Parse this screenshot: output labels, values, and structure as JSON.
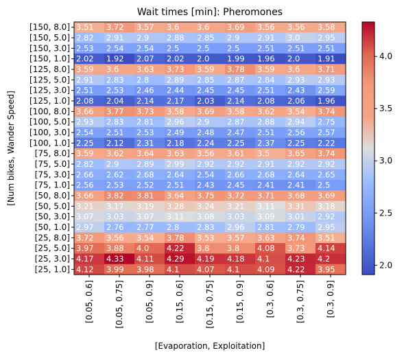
{
  "chart_data": {
    "type": "heatmap",
    "title": "Wait times [min]: Pheromones",
    "xlabel": "[Evaporation, Exploitation]",
    "ylabel": "[Num bikes, Wander Speed]",
    "x_categories": [
      "[0.05, 0.6]",
      "[0.05, 0.75]",
      "[0.05, 0.9]",
      "[0.15, 0.6]",
      "[0.15, 0.75]",
      "[0.15, 0.9]",
      "[0.3, 0.6]",
      "[0.3, 0.75]",
      "[0.3, 0.9]"
    ],
    "y_categories": [
      "[150, 8.0]",
      "[150, 5.0]",
      "[150, 3.0]",
      "[150, 1.0]",
      "[125, 8.0]",
      "[125, 5.0]",
      "[125, 3.0]",
      "[125, 1.0]",
      "[100, 8.0]",
      "[100, 5.0]",
      "[100, 3.0]",
      "[100, 1.0]",
      "[75, 8.0]",
      "[75, 5.0]",
      "[75, 3.0]",
      "[75, 1.0]",
      "[50, 8.0]",
      "[50, 5.0]",
      "[50, 3.0]",
      "[50, 1.0]",
      "[25, 8.0]",
      "[25, 5.0]",
      "[25, 3.0]",
      "[25, 1.0]"
    ],
    "values": [
      [
        "3.51",
        "3.72",
        "3.57",
        "3.6",
        "3.6",
        "3.69",
        "3.56",
        "3.56",
        "3.58"
      ],
      [
        "2.82",
        "2.91",
        "2.9",
        "2.88",
        "2.85",
        "2.9",
        "2.91",
        "3.0",
        "2.95"
      ],
      [
        "2.53",
        "2.54",
        "2.54",
        "2.5",
        "2.5",
        "2.5",
        "2.51",
        "2.51",
        "2.51"
      ],
      [
        "2.02",
        "1.92",
        "2.07",
        "2.02",
        "2.0",
        "1.99",
        "1.96",
        "2.0",
        "1.91"
      ],
      [
        "3.59",
        "3.6",
        "3.63",
        "3.73",
        "3.59",
        "3.78",
        "3.59",
        "3.6",
        "3.71"
      ],
      [
        "2.91",
        "2.83",
        "2.8",
        "2.89",
        "2.85",
        "2.87",
        "2.84",
        "2.93",
        "2.93"
      ],
      [
        "2.51",
        "2.53",
        "2.46",
        "2.44",
        "2.45",
        "2.45",
        "2.51",
        "2.43",
        "2.59"
      ],
      [
        "2.08",
        "2.04",
        "2.14",
        "2.17",
        "2.03",
        "2.14",
        "2.08",
        "2.06",
        "1.96"
      ],
      [
        "3.66",
        "3.77",
        "3.73",
        "3.58",
        "3.69",
        "3.58",
        "3.62",
        "3.54",
        "3.74"
      ],
      [
        "2.93",
        "2.83",
        "2.81",
        "2.96",
        "2.9",
        "2.87",
        "2.88",
        "2.94",
        "2.75"
      ],
      [
        "2.54",
        "2.51",
        "2.53",
        "2.49",
        "2.48",
        "2.47",
        "2.51",
        "2.56",
        "2.57"
      ],
      [
        "2.25",
        "2.12",
        "2.31",
        "2.18",
        "2.24",
        "2.25",
        "2.37",
        "2.25",
        "2.22"
      ],
      [
        "3.59",
        "3.62",
        "3.64",
        "3.63",
        "3.56",
        "3.61",
        "3.5",
        "3.65",
        "3.74"
      ],
      [
        "2.82",
        "2.9",
        "2.89",
        "2.99",
        "2.92",
        "2.92",
        "2.91",
        "2.92",
        "2.92"
      ],
      [
        "2.66",
        "2.62",
        "2.68",
        "2.64",
        "2.54",
        "2.66",
        "2.68",
        "2.64",
        "2.65"
      ],
      [
        "2.56",
        "2.53",
        "2.52",
        "2.51",
        "2.43",
        "2.45",
        "2.41",
        "2.41",
        "2.5"
      ],
      [
        "3.66",
        "3.82",
        "3.81",
        "3.64",
        "3.75",
        "3.72",
        "3.71",
        "3.68",
        "3.69"
      ],
      [
        "3.21",
        "3.17",
        "3.19",
        "3.28",
        "3.24",
        "3.21",
        "3.11",
        "3.31",
        "3.18"
      ],
      [
        "3.07",
        "3.03",
        "3.07",
        "3.11",
        "3.08",
        "3.03",
        "3.09",
        "3.01",
        "2.92"
      ],
      [
        "2.97",
        "2.76",
        "2.77",
        "2.8",
        "2.83",
        "2.96",
        "2.81",
        "2.79",
        "2.95"
      ],
      [
        "3.72",
        "3.56",
        "3.54",
        "3.78",
        "3.53",
        "3.57",
        "3.63",
        "3.74",
        "3.51"
      ],
      [
        "3.97",
        "3.88",
        "4.0",
        "4.22",
        "3.8",
        "3.8",
        "4.08",
        "3.73",
        "4.14"
      ],
      [
        "4.17",
        "4.33",
        "4.11",
        "4.29",
        "4.19",
        "4.18",
        "4.1",
        "4.23",
        "4.2"
      ],
      [
        "4.12",
        "3.99",
        "3.98",
        "4.1",
        "4.07",
        "4.1",
        "4.09",
        "4.22",
        "3.95"
      ]
    ],
    "colormap": "coolwarm",
    "color_range": [
      1.91,
      4.33
    ],
    "colorbar_ticks": [
      "2.0",
      "2.5",
      "3.0",
      "3.5",
      "4.0"
    ],
    "colors": {
      "low": "#3b4cc0",
      "mid": "#dddddd",
      "high": "#b40426"
    }
  }
}
